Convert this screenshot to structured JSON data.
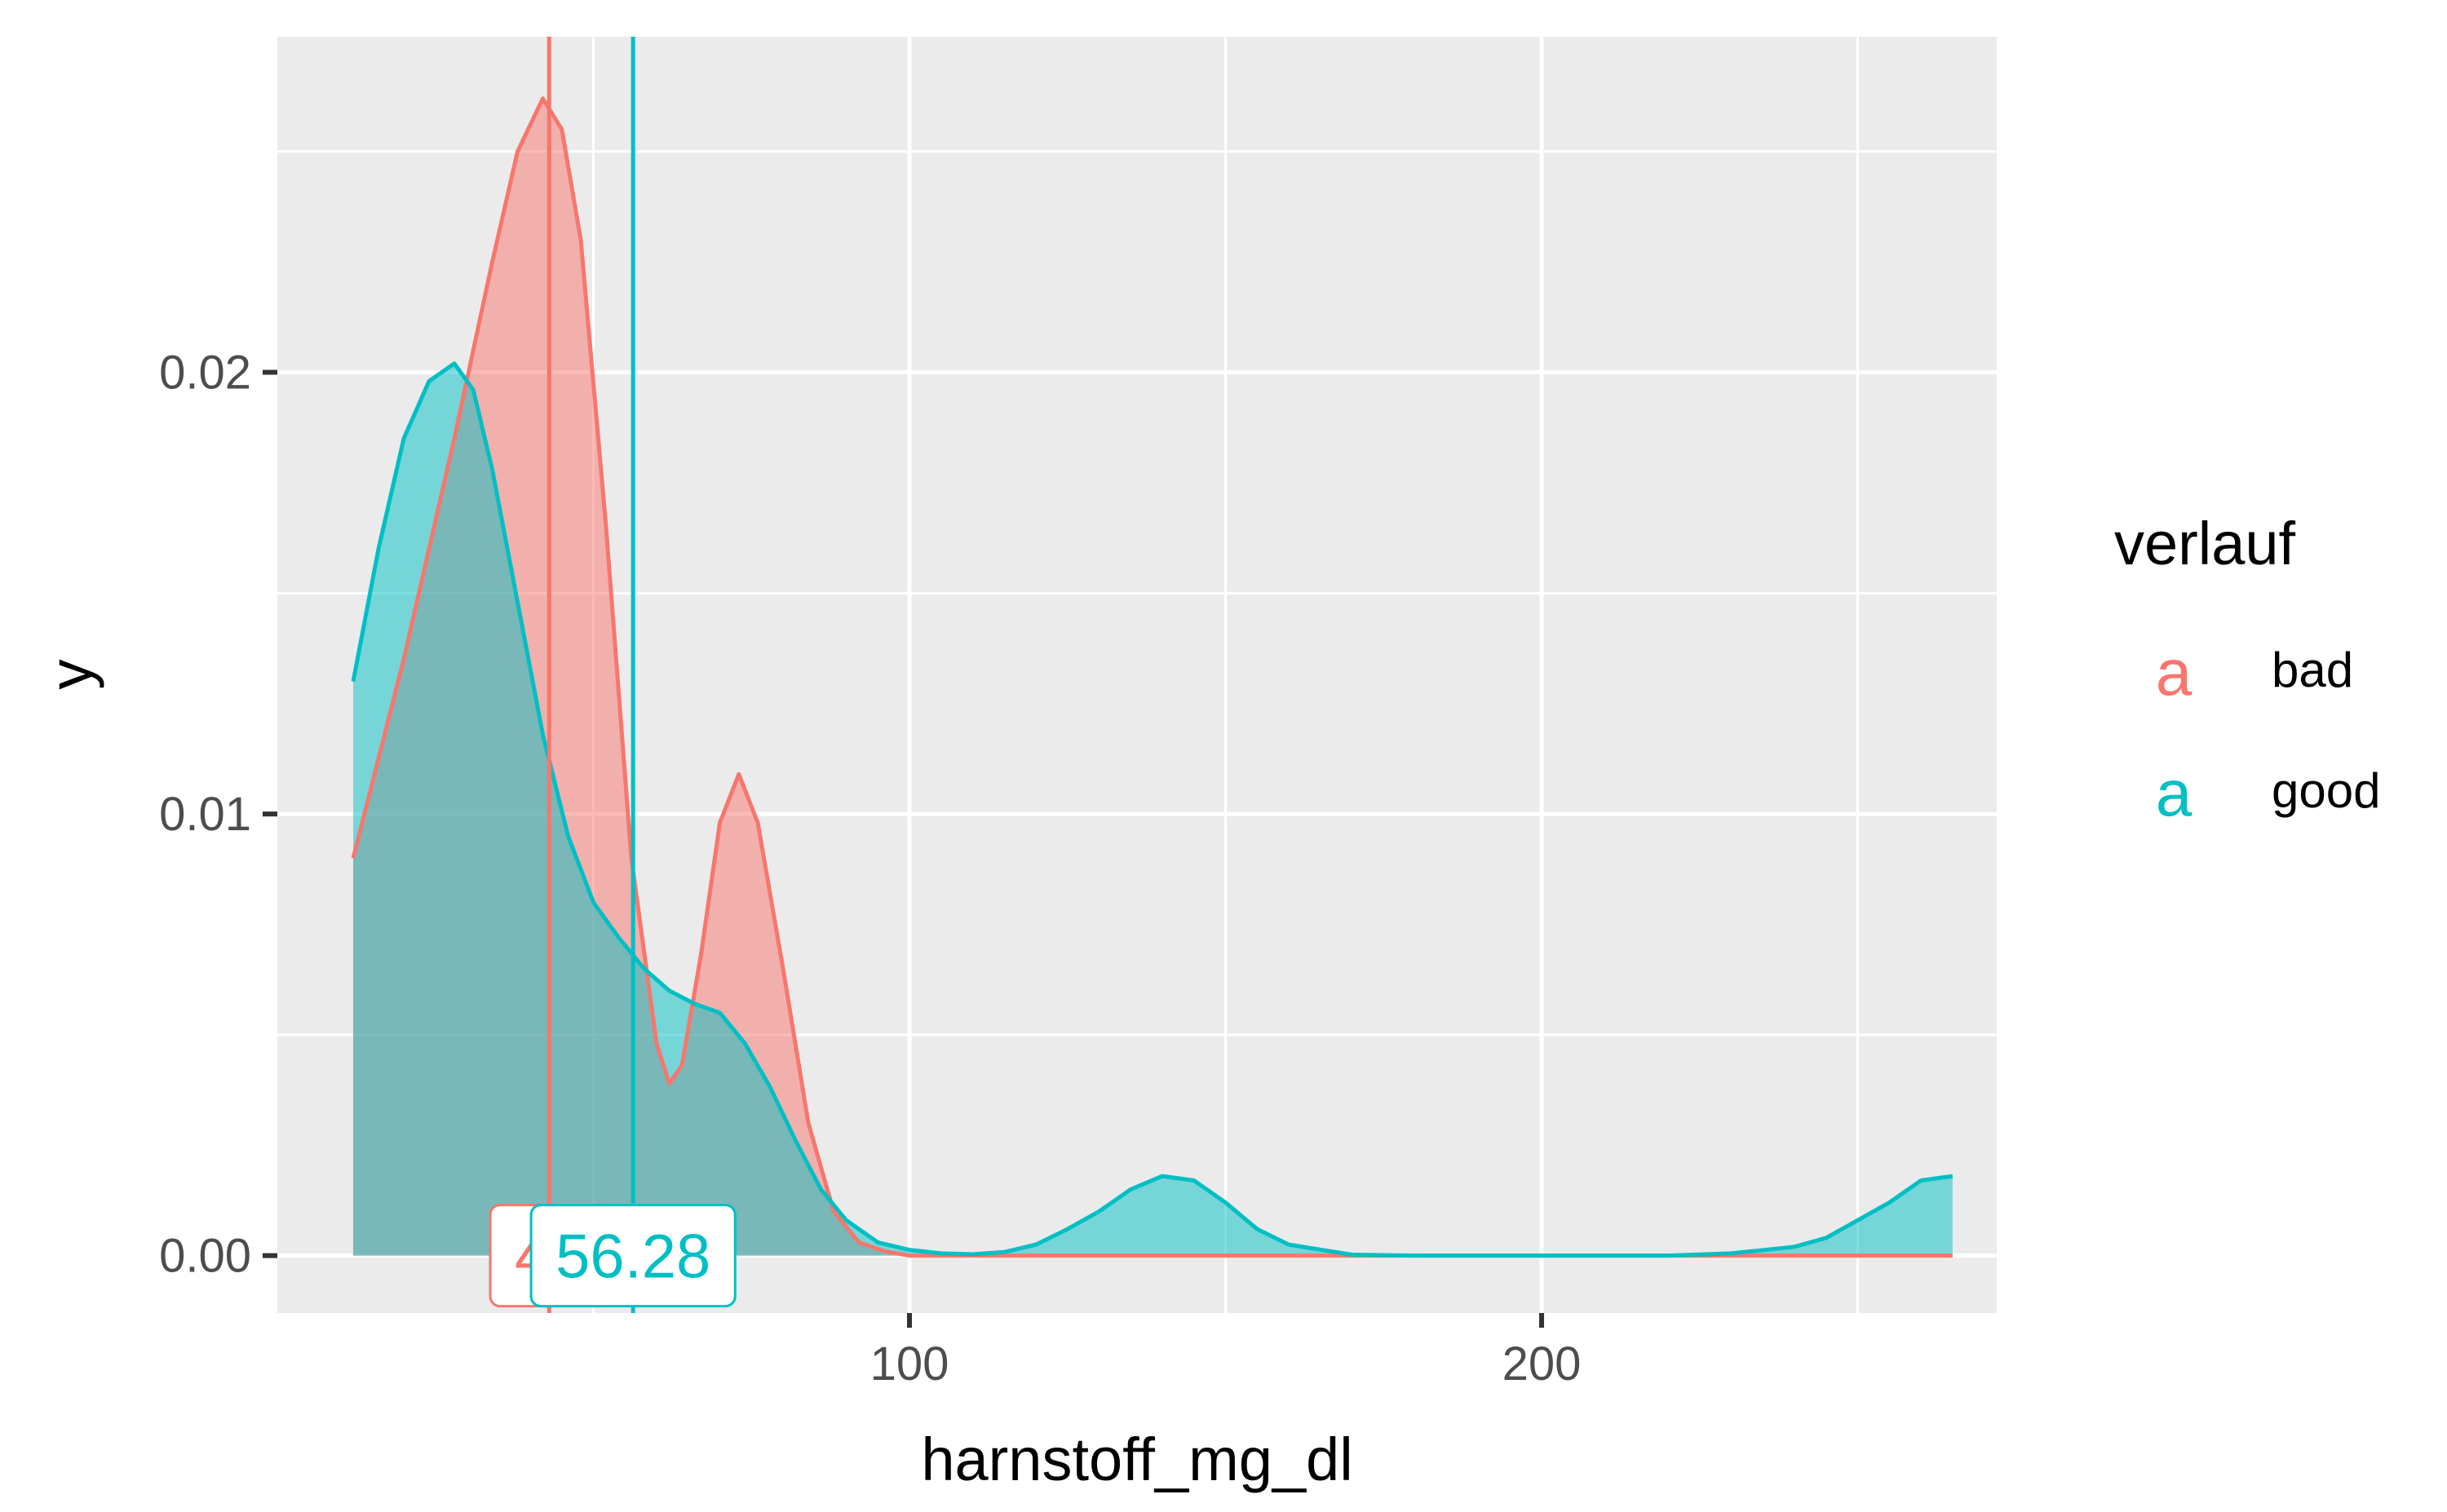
{
  "chart_data": {
    "type": "area",
    "title": "",
    "xlabel": "harnstoff_mg_dl",
    "ylabel": "y",
    "xlim": [
      0,
      272
    ],
    "ylim": [
      -0.0013,
      0.0276
    ],
    "x_ticks": [
      100,
      200
    ],
    "x_tick_labels": [
      "100",
      "200"
    ],
    "y_ticks": [
      0.0,
      0.01,
      0.02
    ],
    "y_tick_labels": [
      "0.00",
      "0.01",
      "0.02"
    ],
    "grid": true,
    "legend": {
      "title": "verlauf",
      "position": "right",
      "key_glyph": "a",
      "entries": [
        "bad",
        "good"
      ]
    },
    "series": [
      {
        "name": "bad",
        "color": "#F8766D",
        "mean": 43,
        "mean_label": "43",
        "x": [
          12,
          20,
          28,
          34,
          38,
          42,
          45,
          48,
          52,
          56,
          60,
          62,
          64,
          67,
          70,
          73,
          76,
          80,
          84,
          88,
          92,
          96,
          100,
          110,
          130,
          150,
          200,
          250,
          265
        ],
        "y": [
          0.009,
          0.0135,
          0.0185,
          0.0225,
          0.025,
          0.0262,
          0.0255,
          0.023,
          0.0165,
          0.009,
          0.0048,
          0.0039,
          0.0043,
          0.0068,
          0.0098,
          0.0109,
          0.0098,
          0.0065,
          0.003,
          0.001,
          0.0003,
          0.0001,
          0.0,
          0.0,
          0.0,
          0.0,
          0.0,
          0.0,
          0.0
        ]
      },
      {
        "name": "good",
        "color": "#00BFC4",
        "mean": 56.28,
        "mean_label": "56.28",
        "x": [
          12,
          16,
          20,
          24,
          28,
          31,
          34,
          38,
          42,
          46,
          50,
          54,
          58,
          62,
          66,
          70,
          74,
          78,
          82,
          86,
          90,
          95,
          100,
          105,
          110,
          115,
          120,
          125,
          130,
          135,
          140,
          145,
          150,
          155,
          160,
          170,
          180,
          200,
          220,
          230,
          240,
          245,
          250,
          255,
          260,
          265
        ],
        "y": [
          0.013,
          0.016,
          0.0185,
          0.0198,
          0.0202,
          0.0196,
          0.0178,
          0.0148,
          0.0118,
          0.0095,
          0.008,
          0.0072,
          0.0065,
          0.006,
          0.0057,
          0.0055,
          0.0048,
          0.0038,
          0.0026,
          0.0015,
          0.0008,
          0.0003,
          0.00013,
          5e-05,
          3e-05,
          8e-05,
          0.00025,
          0.0006,
          0.001,
          0.0015,
          0.0018,
          0.0017,
          0.0012,
          0.0006,
          0.00025,
          2e-05,
          0.0,
          0.0,
          0.0,
          5e-05,
          0.0002,
          0.0004,
          0.0008,
          0.0012,
          0.0017,
          0.0018
        ]
      }
    ]
  }
}
